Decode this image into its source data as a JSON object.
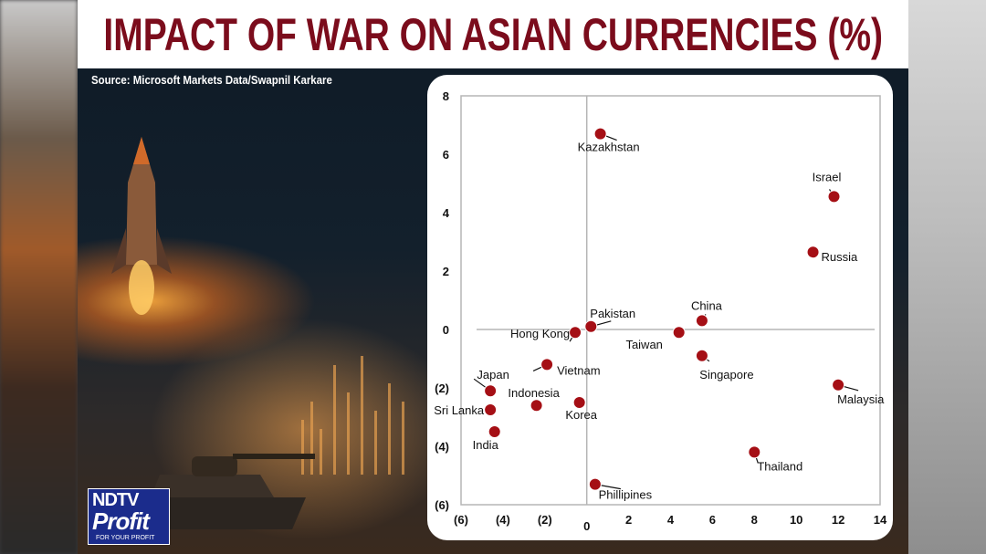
{
  "header": {
    "title": "IMPACT OF WAR ON ASIAN CURRENCIES (%)",
    "source": "Source: Microsoft Markets Data/Swapnil Karkare"
  },
  "logo": {
    "line1": "NDTV",
    "line2": "Profit",
    "tagline": "FOR YOUR PROFIT"
  },
  "colors": {
    "title": "#7b0c1c",
    "point": "#a50f15",
    "background": "#13202c"
  },
  "chart_data": {
    "type": "scatter",
    "title": "IMPACT OF WAR ON ASIAN CURRENCIES (%)",
    "xlim": [
      -6,
      14
    ],
    "ylim": [
      -6,
      8
    ],
    "x_ticks": [
      -6,
      -4,
      -2,
      0,
      2,
      4,
      6,
      8,
      10,
      12,
      14
    ],
    "x_tick_labels": [
      "(6)",
      "(4)",
      "(2)",
      "0",
      "2",
      "4",
      "6",
      "8",
      "10",
      "12",
      "14"
    ],
    "y_ticks": [
      8,
      6,
      4,
      2,
      0,
      -2,
      -4,
      -6
    ],
    "y_tick_labels": [
      "8",
      "6",
      "4",
      "2",
      "0",
      "(2)",
      "(4)",
      "(6)"
    ],
    "grid": false,
    "points": [
      {
        "label": "Kazakhstan",
        "x": 0.65,
        "y": 6.7
      },
      {
        "label": "Israel",
        "x": 11.8,
        "y": 4.55
      },
      {
        "label": "Russia",
        "x": 10.8,
        "y": 2.65
      },
      {
        "label": "China",
        "x": 5.5,
        "y": 0.3
      },
      {
        "label": "Pakistan",
        "x": 0.2,
        "y": 0.1
      },
      {
        "label": "Hong Kong",
        "x": -0.55,
        "y": -0.1
      },
      {
        "label": "Taiwan",
        "x": 4.4,
        "y": -0.1
      },
      {
        "label": "Singapore",
        "x": 5.5,
        "y": -0.9
      },
      {
        "label": "Vietnam",
        "x": -1.9,
        "y": -1.2
      },
      {
        "label": "Malaysia",
        "x": 12.0,
        "y": -1.9
      },
      {
        "label": "Japan",
        "x": -4.6,
        "y": -2.1
      },
      {
        "label": "Indonesia",
        "x": -2.4,
        "y": -2.6
      },
      {
        "label": "Korea",
        "x": -0.35,
        "y": -2.5
      },
      {
        "label": "Sri Lanka",
        "x": -4.6,
        "y": -2.75
      },
      {
        "label": "India",
        "x": -4.4,
        "y": -3.5
      },
      {
        "label": "Thailand",
        "x": 8.0,
        "y": -4.2
      },
      {
        "label": "Phillipines",
        "x": 0.4,
        "y": -5.3
      }
    ]
  }
}
